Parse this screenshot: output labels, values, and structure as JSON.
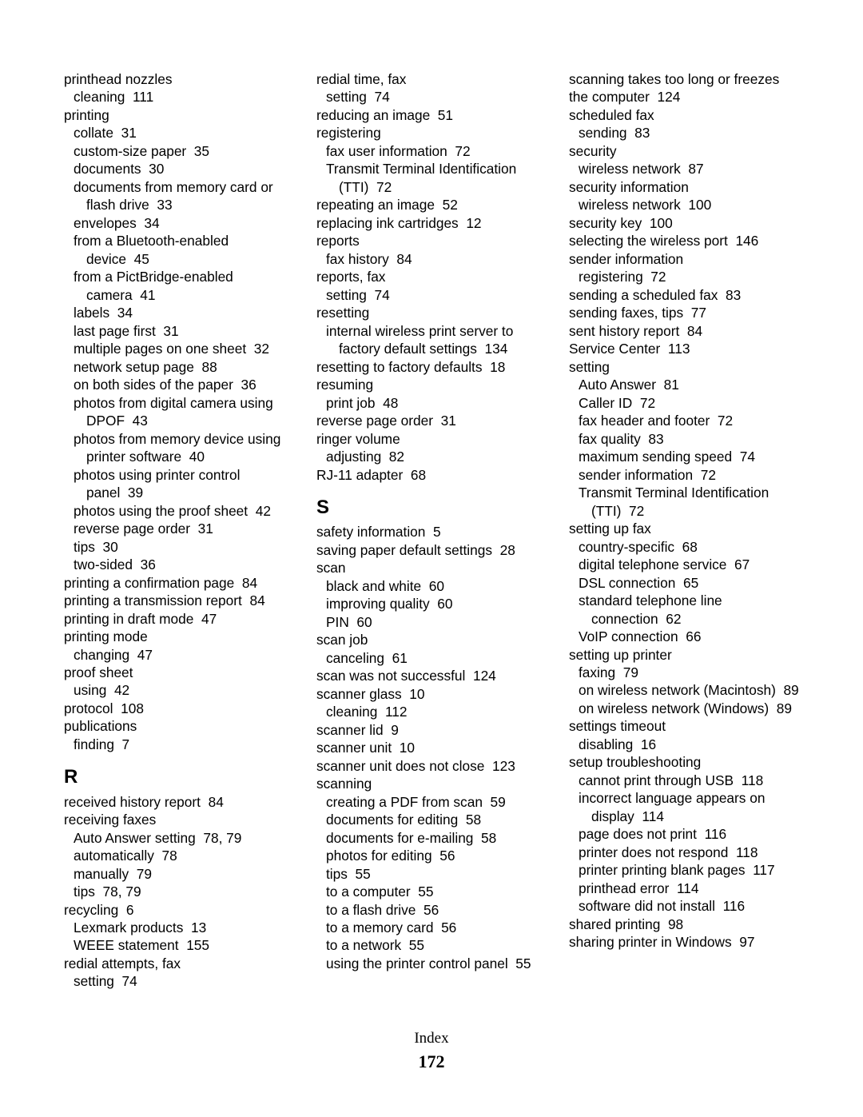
{
  "footer": {
    "label": "Index",
    "page": "172"
  },
  "columns": [
    [
      {
        "type": "entry",
        "level": 0,
        "text": "printhead nozzles"
      },
      {
        "type": "entry",
        "level": 1,
        "text": "cleaning",
        "page": "111"
      },
      {
        "type": "entry",
        "level": 0,
        "text": "printing"
      },
      {
        "type": "entry",
        "level": 1,
        "text": "collate",
        "page": "31"
      },
      {
        "type": "entry",
        "level": 1,
        "text": "custom-size paper",
        "page": "35"
      },
      {
        "type": "entry",
        "level": 1,
        "text": "documents",
        "page": "30"
      },
      {
        "type": "entry",
        "level": 1,
        "text": "documents from memory card or flash drive",
        "page": "33"
      },
      {
        "type": "entry",
        "level": 1,
        "text": "envelopes",
        "page": "34"
      },
      {
        "type": "entry",
        "level": 1,
        "text": "from a Bluetooth-enabled device",
        "page": "45"
      },
      {
        "type": "entry",
        "level": 1,
        "text": "from a PictBridge-enabled camera",
        "page": "41"
      },
      {
        "type": "entry",
        "level": 1,
        "text": "labels",
        "page": "34"
      },
      {
        "type": "entry",
        "level": 1,
        "text": "last page first",
        "page": "31"
      },
      {
        "type": "entry",
        "level": 1,
        "text": "multiple pages on one sheet",
        "page": "32"
      },
      {
        "type": "entry",
        "level": 1,
        "text": "network setup page",
        "page": "88"
      },
      {
        "type": "entry",
        "level": 1,
        "text": "on both sides of the paper",
        "page": "36"
      },
      {
        "type": "entry",
        "level": 1,
        "text": "photos from digital camera using DPOF",
        "page": "43"
      },
      {
        "type": "entry",
        "level": 1,
        "text": "photos from memory device using printer software",
        "page": "40"
      },
      {
        "type": "entry",
        "level": 1,
        "text": "photos using printer control panel",
        "page": "39"
      },
      {
        "type": "entry",
        "level": 1,
        "text": "photos using the proof sheet",
        "page": "42"
      },
      {
        "type": "entry",
        "level": 1,
        "text": "reverse page order",
        "page": "31"
      },
      {
        "type": "entry",
        "level": 1,
        "text": "tips",
        "page": "30"
      },
      {
        "type": "entry",
        "level": 1,
        "text": "two-sided",
        "page": "36"
      },
      {
        "type": "entry",
        "level": 0,
        "text": "printing a confirmation page",
        "page": "84"
      },
      {
        "type": "entry",
        "level": 0,
        "text": "printing a transmission report",
        "page": "84"
      },
      {
        "type": "entry",
        "level": 0,
        "text": "printing in draft mode",
        "page": "47"
      },
      {
        "type": "entry",
        "level": 0,
        "text": "printing mode"
      },
      {
        "type": "entry",
        "level": 1,
        "text": "changing",
        "page": "47"
      },
      {
        "type": "entry",
        "level": 0,
        "text": "proof sheet"
      },
      {
        "type": "entry",
        "level": 1,
        "text": "using",
        "page": "42"
      },
      {
        "type": "entry",
        "level": 0,
        "text": "protocol",
        "page": "108"
      },
      {
        "type": "entry",
        "level": 0,
        "text": "publications"
      },
      {
        "type": "entry",
        "level": 1,
        "text": "finding",
        "page": "7"
      },
      {
        "type": "heading",
        "text": "R"
      },
      {
        "type": "entry",
        "level": 0,
        "text": "received history report",
        "page": "84"
      },
      {
        "type": "entry",
        "level": 0,
        "text": "receiving faxes"
      },
      {
        "type": "entry",
        "level": 1,
        "text": "Auto Answer setting",
        "page": "78, 79"
      },
      {
        "type": "entry",
        "level": 1,
        "text": "automatically",
        "page": "78"
      },
      {
        "type": "entry",
        "level": 1,
        "text": "manually",
        "page": "79"
      },
      {
        "type": "entry",
        "level": 1,
        "text": "tips",
        "page": "78, 79"
      },
      {
        "type": "entry",
        "level": 0,
        "text": "recycling",
        "page": "6"
      },
      {
        "type": "entry",
        "level": 1,
        "text": "Lexmark products",
        "page": "13"
      },
      {
        "type": "entry",
        "level": 1,
        "text": "WEEE statement",
        "page": "155"
      },
      {
        "type": "entry",
        "level": 0,
        "text": "redial attempts, fax"
      },
      {
        "type": "entry",
        "level": 1,
        "text": "setting",
        "page": "74"
      }
    ],
    [
      {
        "type": "entry",
        "level": 0,
        "text": "redial time, fax"
      },
      {
        "type": "entry",
        "level": 1,
        "text": "setting",
        "page": "74"
      },
      {
        "type": "entry",
        "level": 0,
        "text": "reducing an image",
        "page": "51"
      },
      {
        "type": "entry",
        "level": 0,
        "text": "registering"
      },
      {
        "type": "entry",
        "level": 1,
        "text": "fax user information",
        "page": "72"
      },
      {
        "type": "entry",
        "level": 1,
        "text": "Transmit Terminal Identification (TTI)",
        "page": "72"
      },
      {
        "type": "entry",
        "level": 0,
        "text": "repeating an image",
        "page": "52"
      },
      {
        "type": "entry",
        "level": 0,
        "text": "replacing ink cartridges",
        "page": "12"
      },
      {
        "type": "entry",
        "level": 0,
        "text": "reports"
      },
      {
        "type": "entry",
        "level": 1,
        "text": "fax history",
        "page": "84"
      },
      {
        "type": "entry",
        "level": 0,
        "text": "reports, fax"
      },
      {
        "type": "entry",
        "level": 1,
        "text": "setting",
        "page": "74"
      },
      {
        "type": "entry",
        "level": 0,
        "text": "resetting"
      },
      {
        "type": "entry",
        "level": 1,
        "text": "internal wireless print server to factory default settings",
        "page": "134"
      },
      {
        "type": "entry",
        "level": 0,
        "text": "resetting to factory defaults",
        "page": "18"
      },
      {
        "type": "entry",
        "level": 0,
        "text": "resuming"
      },
      {
        "type": "entry",
        "level": 1,
        "text": "print job",
        "page": "48"
      },
      {
        "type": "entry",
        "level": 0,
        "text": "reverse page order",
        "page": "31"
      },
      {
        "type": "entry",
        "level": 0,
        "text": "ringer volume"
      },
      {
        "type": "entry",
        "level": 1,
        "text": "adjusting",
        "page": "82"
      },
      {
        "type": "entry",
        "level": 0,
        "text": "RJ-11 adapter",
        "page": "68"
      },
      {
        "type": "heading",
        "text": "S"
      },
      {
        "type": "entry",
        "level": 0,
        "text": "safety information",
        "page": "5"
      },
      {
        "type": "entry",
        "level": 0,
        "text": "saving paper default settings",
        "page": "28"
      },
      {
        "type": "entry",
        "level": 0,
        "text": "scan"
      },
      {
        "type": "entry",
        "level": 1,
        "text": "black and white",
        "page": "60"
      },
      {
        "type": "entry",
        "level": 1,
        "text": "improving quality",
        "page": "60"
      },
      {
        "type": "entry",
        "level": 1,
        "text": "PIN",
        "page": "60"
      },
      {
        "type": "entry",
        "level": 0,
        "text": "scan job"
      },
      {
        "type": "entry",
        "level": 1,
        "text": "canceling",
        "page": "61"
      },
      {
        "type": "entry",
        "level": 0,
        "text": "scan was not successful",
        "page": "124"
      },
      {
        "type": "entry",
        "level": 0,
        "text": "scanner glass",
        "page": "10"
      },
      {
        "type": "entry",
        "level": 1,
        "text": "cleaning",
        "page": "112"
      },
      {
        "type": "entry",
        "level": 0,
        "text": "scanner lid",
        "page": "9"
      },
      {
        "type": "entry",
        "level": 0,
        "text": "scanner unit",
        "page": "10"
      },
      {
        "type": "entry",
        "level": 0,
        "text": "scanner unit does not close",
        "page": "123"
      },
      {
        "type": "entry",
        "level": 0,
        "text": "scanning"
      },
      {
        "type": "entry",
        "level": 1,
        "text": "creating a PDF from scan",
        "page": "59"
      },
      {
        "type": "entry",
        "level": 1,
        "text": "documents for editing",
        "page": "58"
      },
      {
        "type": "entry",
        "level": 1,
        "text": "documents for e-mailing",
        "page": "58"
      },
      {
        "type": "entry",
        "level": 1,
        "text": "photos for editing",
        "page": "56"
      },
      {
        "type": "entry",
        "level": 1,
        "text": "tips",
        "page": "55"
      },
      {
        "type": "entry",
        "level": 1,
        "text": "to a computer",
        "page": "55"
      },
      {
        "type": "entry",
        "level": 1,
        "text": "to a flash drive",
        "page": "56"
      },
      {
        "type": "entry",
        "level": 1,
        "text": "to a memory card",
        "page": "56"
      },
      {
        "type": "entry",
        "level": 1,
        "text": "to a network",
        "page": "55"
      },
      {
        "type": "entry",
        "level": 1,
        "text": "using the printer control panel",
        "page": "55"
      }
    ],
    [
      {
        "type": "entry",
        "level": 0,
        "text": "scanning takes too long or freezes the computer",
        "page": "124"
      },
      {
        "type": "entry",
        "level": 0,
        "text": "scheduled fax"
      },
      {
        "type": "entry",
        "level": 1,
        "text": "sending",
        "page": "83"
      },
      {
        "type": "entry",
        "level": 0,
        "text": "security"
      },
      {
        "type": "entry",
        "level": 1,
        "text": "wireless network",
        "page": "87"
      },
      {
        "type": "entry",
        "level": 0,
        "text": "security information"
      },
      {
        "type": "entry",
        "level": 1,
        "text": "wireless network",
        "page": "100"
      },
      {
        "type": "entry",
        "level": 0,
        "text": "security key",
        "page": "100"
      },
      {
        "type": "entry",
        "level": 0,
        "text": "selecting the wireless port",
        "page": "146"
      },
      {
        "type": "entry",
        "level": 0,
        "text": "sender information"
      },
      {
        "type": "entry",
        "level": 1,
        "text": "registering",
        "page": "72"
      },
      {
        "type": "entry",
        "level": 0,
        "text": "sending a scheduled fax",
        "page": "83"
      },
      {
        "type": "entry",
        "level": 0,
        "text": "sending faxes, tips",
        "page": "77"
      },
      {
        "type": "entry",
        "level": 0,
        "text": "sent history report",
        "page": "84"
      },
      {
        "type": "entry",
        "level": 0,
        "text": "Service Center",
        "page": "113"
      },
      {
        "type": "entry",
        "level": 0,
        "text": "setting"
      },
      {
        "type": "entry",
        "level": 1,
        "text": "Auto Answer",
        "page": "81"
      },
      {
        "type": "entry",
        "level": 1,
        "text": "Caller ID",
        "page": "72"
      },
      {
        "type": "entry",
        "level": 1,
        "text": "fax header and footer",
        "page": "72"
      },
      {
        "type": "entry",
        "level": 1,
        "text": "fax quality",
        "page": "83"
      },
      {
        "type": "entry",
        "level": 1,
        "text": "maximum sending speed",
        "page": "74"
      },
      {
        "type": "entry",
        "level": 1,
        "text": "sender information",
        "page": "72"
      },
      {
        "type": "entry",
        "level": 1,
        "text": "Transmit Terminal Identification (TTI)",
        "page": "72"
      },
      {
        "type": "entry",
        "level": 0,
        "text": "setting up fax"
      },
      {
        "type": "entry",
        "level": 1,
        "text": "country-specific",
        "page": "68"
      },
      {
        "type": "entry",
        "level": 1,
        "text": "digital telephone service",
        "page": "67"
      },
      {
        "type": "entry",
        "level": 1,
        "text": "DSL connection",
        "page": "65"
      },
      {
        "type": "entry",
        "level": 1,
        "text": "standard telephone line connection",
        "page": "62"
      },
      {
        "type": "entry",
        "level": 1,
        "text": "VoIP connection",
        "page": "66"
      },
      {
        "type": "entry",
        "level": 0,
        "text": "setting up printer"
      },
      {
        "type": "entry",
        "level": 1,
        "text": "faxing",
        "page": "79"
      },
      {
        "type": "entry",
        "level": 1,
        "text": "on wireless network (Macintosh)",
        "page": "89"
      },
      {
        "type": "entry",
        "level": 1,
        "text": "on wireless network (Windows)",
        "page": "89"
      },
      {
        "type": "entry",
        "level": 0,
        "text": "settings timeout"
      },
      {
        "type": "entry",
        "level": 1,
        "text": "disabling",
        "page": "16"
      },
      {
        "type": "entry",
        "level": 0,
        "text": "setup troubleshooting"
      },
      {
        "type": "entry",
        "level": 1,
        "text": "cannot print through USB",
        "page": "118"
      },
      {
        "type": "entry",
        "level": 1,
        "text": "incorrect language appears on display",
        "page": "114"
      },
      {
        "type": "entry",
        "level": 1,
        "text": "page does not print",
        "page": "116"
      },
      {
        "type": "entry",
        "level": 1,
        "text": "printer does not respond",
        "page": "118"
      },
      {
        "type": "entry",
        "level": 1,
        "text": "printer printing blank pages",
        "page": "117"
      },
      {
        "type": "entry",
        "level": 1,
        "text": "printhead error",
        "page": "114"
      },
      {
        "type": "entry",
        "level": 1,
        "text": "software did not install",
        "page": "116"
      },
      {
        "type": "entry",
        "level": 0,
        "text": "shared printing",
        "page": "98"
      },
      {
        "type": "entry",
        "level": 0,
        "text": "sharing printer in Windows",
        "page": "97"
      }
    ]
  ]
}
